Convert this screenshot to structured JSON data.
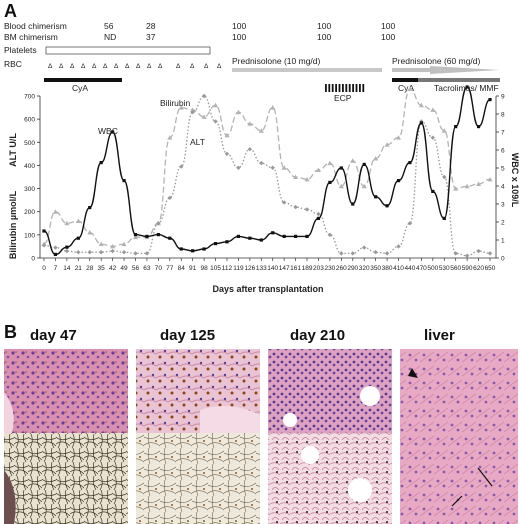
{
  "panels": {
    "a_letter": "A",
    "b_letter": "B"
  },
  "header": {
    "blood_chimerism": {
      "label": "Blood chimerism",
      "values": [
        "56",
        "28",
        "100",
        "100",
        "100"
      ]
    },
    "bm_chimerism": {
      "label": "BM chimerism",
      "values": [
        "ND",
        "37",
        "100",
        "100",
        "100"
      ]
    },
    "platelets": "Platelets",
    "rbc": "RBC",
    "rbc_marker": "Δ"
  },
  "treatments": {
    "cya_1": "CyA",
    "pred_10": "Prednisolone (10 mg/d)",
    "pred_60": "Prednisolone (60 mg/d)",
    "ecp": "ECP",
    "cya_2": "CyA",
    "tacro": "Tacrolimus/ MMF"
  },
  "chart_data": {
    "type": "line",
    "xlabel": "Days after transplantation",
    "ylabel_left_top": "ALT U/L",
    "ylabel_left_bottom": "Bilirubin µmol/L",
    "ylabel_right": "WBC x 109/L",
    "ylim_left": [
      0,
      700
    ],
    "ylim_right": [
      0,
      9
    ],
    "yticks_left": [
      "0",
      "100",
      "200",
      "300",
      "400",
      "500",
      "600",
      "700"
    ],
    "yticks_right": [
      "0",
      "1",
      "2",
      "3",
      "4",
      "5",
      "6",
      "7",
      "8",
      "9"
    ],
    "x_ticks": [
      "0",
      "7",
      "14",
      "21",
      "28",
      "35",
      "42",
      "49",
      "56",
      "63",
      "70",
      "77",
      "84",
      "91",
      "98",
      "105",
      "112",
      "119",
      "126",
      "133",
      "140",
      "147",
      "161",
      "189",
      "203",
      "230",
      "260",
      "290",
      "320",
      "350",
      "380",
      "410",
      "440",
      "470",
      "500",
      "530",
      "560",
      "590",
      "620",
      "650"
    ],
    "series": [
      {
        "name": "WBC",
        "axis": "right",
        "color": "#111111",
        "style": "solid",
        "values": [
          1.5,
          0.2,
          0.6,
          1.1,
          2.8,
          5.3,
          7.0,
          4.3,
          1.3,
          1.2,
          1.3,
          1.1,
          0.5,
          0.4,
          0.5,
          0.8,
          0.9,
          1.2,
          1.1,
          1.0,
          1.4,
          1.2,
          1.2,
          1.2,
          2.2,
          4.2,
          5.0,
          3.0,
          5.2,
          3.4,
          2.9,
          4.3,
          5.3,
          7.5,
          3.7,
          2.2,
          7.3,
          9.5,
          7.3,
          8.8
        ]
      },
      {
        "name": "Bilirubin",
        "axis": "left",
        "color": "#999999",
        "style": "dotted",
        "values": [
          55,
          45,
          30,
          25,
          25,
          25,
          30,
          25,
          20,
          20,
          150,
          260,
          395,
          630,
          700,
          590,
          450,
          390,
          470,
          410,
          390,
          240,
          220,
          210,
          190,
          100,
          20,
          20,
          45,
          25,
          20,
          50,
          150,
          590,
          520,
          350,
          20,
          10,
          30,
          20
        ]
      },
      {
        "name": "ALT",
        "axis": "left",
        "color": "#b3b3b3",
        "style": "dashed",
        "values": [
          60,
          200,
          150,
          160,
          110,
          60,
          50,
          60,
          90,
          90,
          150,
          520,
          650,
          640,
          610,
          660,
          530,
          630,
          580,
          550,
          650,
          390,
          350,
          340,
          380,
          410,
          310,
          420,
          310,
          430,
          490,
          520,
          730,
          660,
          640,
          550,
          300,
          310,
          320,
          340
        ]
      }
    ],
    "annotations": [
      "WBC",
      "Bilirubin",
      "ALT"
    ]
  },
  "micrographs": [
    {
      "title": "day 47"
    },
    {
      "title": "day 125"
    },
    {
      "title": "day 210"
    },
    {
      "title": "liver"
    }
  ]
}
